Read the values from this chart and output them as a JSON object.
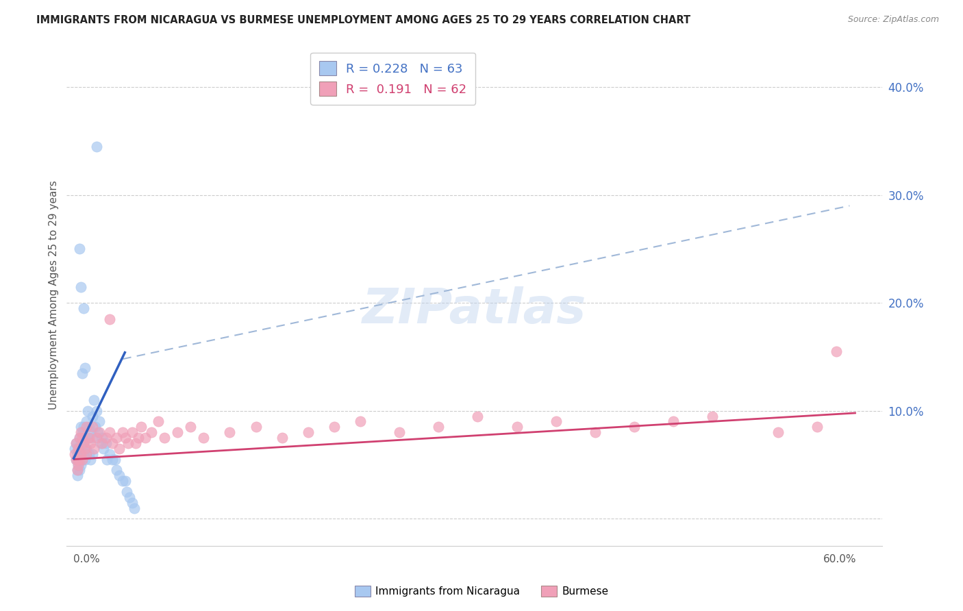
{
  "title": "IMMIGRANTS FROM NICARAGUA VS BURMESE UNEMPLOYMENT AMONG AGES 25 TO 29 YEARS CORRELATION CHART",
  "source": "Source: ZipAtlas.com",
  "ylabel": "Unemployment Among Ages 25 to 29 years",
  "watermark": "ZIPatlas",
  "blue_scatter_color": "#a8c8f0",
  "pink_scatter_color": "#f0a0b8",
  "blue_line_color": "#3060c0",
  "pink_line_color": "#d04070",
  "dashed_line_color": "#a0b8d8",
  "legend_text_blue": "R = 0.228   N = 63",
  "legend_text_pink": "R =  0.191   N = 62",
  "legend_blue_text_color": "#4472c4",
  "legend_pink_text_color": "#d04070",
  "ytick_color": "#4472c4",
  "ylabel_color": "#555555",
  "title_color": "#222222",
  "source_color": "#888888",
  "grid_color": "#cccccc",
  "xlim": [
    0.0,
    0.6
  ],
  "ylim": [
    0.0,
    0.42
  ],
  "yticks": [
    0.0,
    0.1,
    0.2,
    0.3,
    0.4
  ],
  "ytick_labels_right": [
    "",
    "10.0%",
    "20.0%",
    "30.0%",
    "40.0%"
  ],
  "blue_line_x": [
    0.0,
    0.04
  ],
  "blue_line_y": [
    0.055,
    0.155
  ],
  "pink_line_x": [
    0.0,
    0.6
  ],
  "pink_line_y": [
    0.055,
    0.098
  ],
  "dash_line_x": [
    0.038,
    0.595
  ],
  "dash_line_y": [
    0.148,
    0.29
  ],
  "nic_x": [
    0.001,
    0.002,
    0.002,
    0.003,
    0.003,
    0.003,
    0.004,
    0.004,
    0.004,
    0.005,
    0.005,
    0.005,
    0.005,
    0.006,
    0.006,
    0.006,
    0.006,
    0.007,
    0.007,
    0.007,
    0.008,
    0.008,
    0.008,
    0.009,
    0.009,
    0.01,
    0.01,
    0.011,
    0.011,
    0.012,
    0.012,
    0.013,
    0.013,
    0.014,
    0.015,
    0.015,
    0.016,
    0.017,
    0.018,
    0.019,
    0.02,
    0.021,
    0.022,
    0.023,
    0.025,
    0.026,
    0.028,
    0.03,
    0.032,
    0.033,
    0.035,
    0.038,
    0.04,
    0.041,
    0.043,
    0.045,
    0.047,
    0.005,
    0.006,
    0.018,
    0.007,
    0.008,
    0.009
  ],
  "nic_y": [
    0.065,
    0.055,
    0.07,
    0.06,
    0.045,
    0.04,
    0.065,
    0.05,
    0.055,
    0.075,
    0.065,
    0.055,
    0.045,
    0.085,
    0.07,
    0.06,
    0.05,
    0.08,
    0.065,
    0.055,
    0.085,
    0.07,
    0.06,
    0.075,
    0.055,
    0.09,
    0.065,
    0.1,
    0.075,
    0.085,
    0.06,
    0.08,
    0.055,
    0.075,
    0.095,
    0.06,
    0.11,
    0.085,
    0.1,
    0.08,
    0.09,
    0.07,
    0.075,
    0.065,
    0.07,
    0.055,
    0.06,
    0.055,
    0.055,
    0.045,
    0.04,
    0.035,
    0.035,
    0.025,
    0.02,
    0.015,
    0.01,
    0.25,
    0.215,
    0.345,
    0.135,
    0.195,
    0.14
  ],
  "bur_x": [
    0.001,
    0.002,
    0.002,
    0.003,
    0.003,
    0.004,
    0.004,
    0.005,
    0.005,
    0.006,
    0.006,
    0.007,
    0.007,
    0.008,
    0.009,
    0.01,
    0.01,
    0.012,
    0.013,
    0.015,
    0.016,
    0.018,
    0.02,
    0.022,
    0.025,
    0.028,
    0.03,
    0.033,
    0.035,
    0.038,
    0.04,
    0.042,
    0.045,
    0.048,
    0.05,
    0.052,
    0.055,
    0.06,
    0.065,
    0.07,
    0.08,
    0.09,
    0.1,
    0.12,
    0.14,
    0.16,
    0.18,
    0.2,
    0.22,
    0.25,
    0.28,
    0.31,
    0.34,
    0.37,
    0.4,
    0.43,
    0.46,
    0.49,
    0.54,
    0.57,
    0.585,
    0.028
  ],
  "bur_y": [
    0.06,
    0.055,
    0.07,
    0.055,
    0.045,
    0.065,
    0.05,
    0.075,
    0.055,
    0.08,
    0.06,
    0.075,
    0.055,
    0.07,
    0.065,
    0.085,
    0.06,
    0.075,
    0.07,
    0.085,
    0.065,
    0.075,
    0.08,
    0.07,
    0.075,
    0.08,
    0.07,
    0.075,
    0.065,
    0.08,
    0.075,
    0.07,
    0.08,
    0.07,
    0.075,
    0.085,
    0.075,
    0.08,
    0.09,
    0.075,
    0.08,
    0.085,
    0.075,
    0.08,
    0.085,
    0.075,
    0.08,
    0.085,
    0.09,
    0.08,
    0.085,
    0.095,
    0.085,
    0.09,
    0.08,
    0.085,
    0.09,
    0.095,
    0.08,
    0.085,
    0.155,
    0.185
  ]
}
